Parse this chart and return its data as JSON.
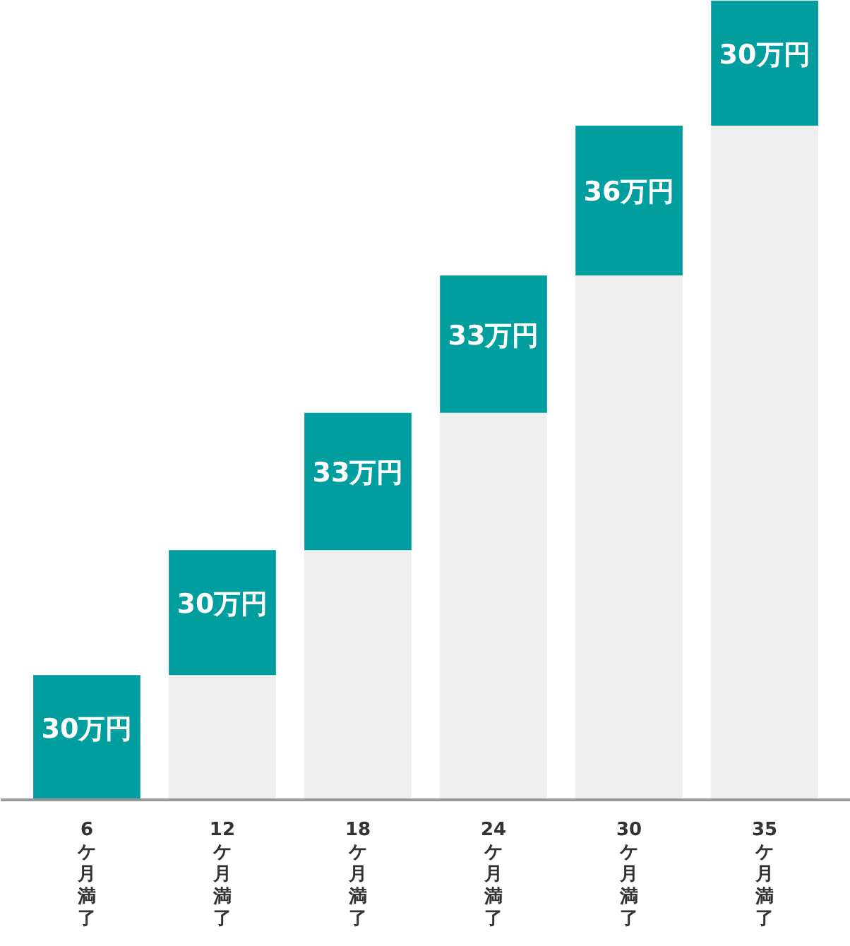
{
  "chart_data": {
    "type": "bar",
    "stacked": true,
    "categories": [
      "6ケ月満了",
      "12ケ月満了",
      "18ケ月満了",
      "24ケ月満了",
      "30ケ月満了",
      "35ケ月満了"
    ],
    "ylim": [
      0,
      192
    ],
    "grid": false,
    "tick_labels": "x",
    "series": [
      {
        "color": "#efefef",
        "values": [
          0,
          30,
          60,
          93,
          126,
          162
        ]
      },
      {
        "color": "#009e9e",
        "values": [
          30,
          30,
          33,
          33,
          36,
          30
        ],
        "value_labels": [
          "30万円",
          "30万円",
          "33万円",
          "33万円",
          "36万円",
          "30万円"
        ]
      }
    ]
  }
}
